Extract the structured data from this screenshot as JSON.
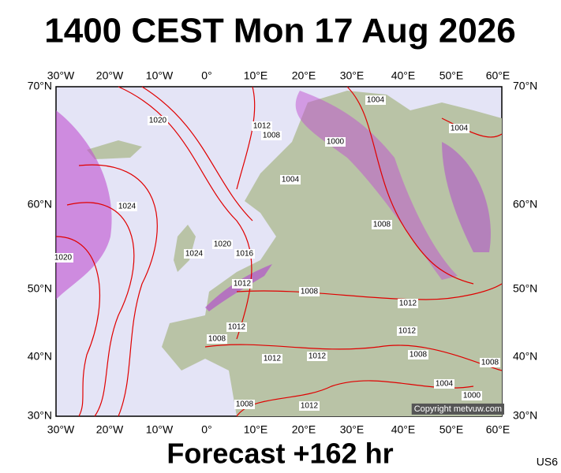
{
  "header": {
    "title": "1400 CEST Mon 17 Aug 2026"
  },
  "axes": {
    "longitudes": [
      "30°W",
      "20°W",
      "10°W",
      "0°",
      "10°E",
      "20°E",
      "30°E",
      "40°E",
      "50°E",
      "60°E"
    ],
    "latitudes": [
      "70°N",
      "60°N",
      "50°N",
      "40°N",
      "30°N"
    ]
  },
  "isobar_labels": [
    "1004",
    "1020",
    "1012",
    "1008",
    "1000",
    "1004",
    "1004",
    "1024",
    "1008",
    "1020",
    "1016",
    "1024",
    "1020",
    "1012",
    "1008",
    "1012",
    "1012",
    "1012",
    "1008",
    "1012",
    "1012",
    "1008",
    "1008",
    "1004",
    "1000",
    "1008",
    "1012"
  ],
  "copyright": "Copyright metvuw.com",
  "footer": {
    "caption": "Forecast +162 hr",
    "code": "US6"
  }
}
